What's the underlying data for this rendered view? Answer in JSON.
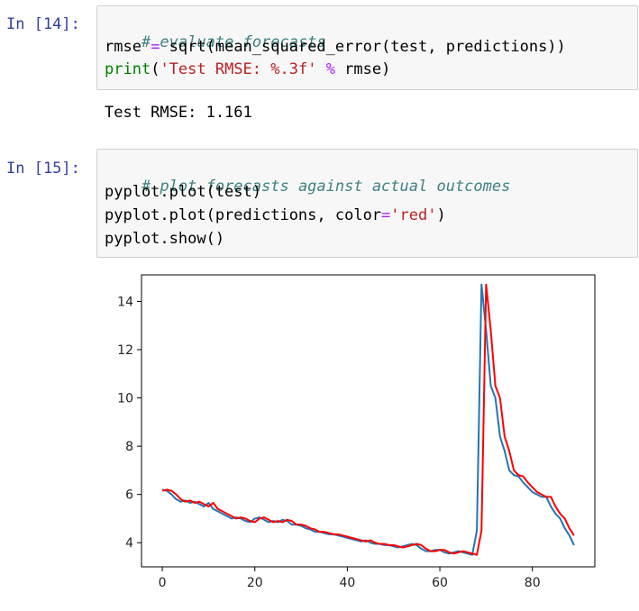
{
  "cells": [
    {
      "prompt": "In [14]:",
      "code": {
        "line1_comment": "# evaluate forecasts",
        "line2_lhs": "rmse ",
        "line2_op": "=",
        "line2_rhs": " sqrt(mean_squared_error(test, predictions))",
        "line3_builtin": "print",
        "line3_open": "(",
        "line3_string": "'Test RMSE: %.3f'",
        "line3_space": " ",
        "line3_op": "%",
        "line3_rest": " rmse)"
      },
      "output": "Test RMSE: 1.161"
    },
    {
      "prompt": "In [15]:",
      "code": {
        "line1_comment": "# plot forecasts against actual outcomes",
        "line2": "pyplot.plot(test)",
        "line3_pre": "pyplot.plot(predictions, color",
        "line3_op": "=",
        "line3_string": "'red'",
        "line3_close": ")",
        "line4": "pyplot.show()"
      }
    }
  ],
  "chart_data": {
    "type": "line",
    "title": "",
    "xlabel": "",
    "ylabel": "",
    "xlim": [
      -4.5,
      93.5
    ],
    "ylim": [
      3.0,
      15.1
    ],
    "xticks": [
      0,
      20,
      40,
      60,
      80
    ],
    "yticks": [
      4,
      6,
      8,
      10,
      12,
      14
    ],
    "grid": false,
    "series": [
      {
        "color": "#1f77b4",
        "values": [
          6.2,
          6.15,
          6.0,
          5.8,
          5.7,
          5.75,
          5.65,
          5.7,
          5.6,
          5.5,
          5.65,
          5.4,
          5.3,
          5.2,
          5.1,
          5.0,
          5.05,
          5.0,
          4.9,
          4.85,
          5.0,
          5.05,
          4.95,
          4.85,
          4.9,
          4.85,
          4.95,
          4.9,
          4.75,
          4.75,
          4.7,
          4.6,
          4.55,
          4.45,
          4.45,
          4.4,
          4.35,
          4.35,
          4.3,
          4.25,
          4.2,
          4.15,
          4.1,
          4.05,
          4.1,
          4.0,
          3.95,
          3.95,
          3.9,
          3.9,
          3.85,
          3.8,
          3.85,
          3.9,
          3.95,
          3.9,
          3.75,
          3.65,
          3.65,
          3.7,
          3.7,
          3.6,
          3.55,
          3.6,
          3.65,
          3.6,
          3.55,
          3.5,
          4.5,
          14.7,
          12.8,
          10.5,
          10.0,
          8.4,
          7.8,
          7.0,
          6.8,
          6.75,
          6.5,
          6.3,
          6.1,
          6.0,
          5.9,
          5.9,
          5.5,
          5.2,
          5.0,
          4.6,
          4.3,
          3.9
        ]
      },
      {
        "color": "red",
        "values": [
          6.15,
          6.2,
          6.15,
          6.0,
          5.8,
          5.7,
          5.75,
          5.65,
          5.7,
          5.6,
          5.5,
          5.65,
          5.4,
          5.3,
          5.2,
          5.1,
          5.0,
          5.05,
          5.0,
          4.9,
          4.85,
          5.0,
          5.05,
          4.95,
          4.85,
          4.9,
          4.85,
          4.95,
          4.9,
          4.75,
          4.75,
          4.7,
          4.6,
          4.55,
          4.45,
          4.45,
          4.4,
          4.35,
          4.35,
          4.3,
          4.25,
          4.2,
          4.15,
          4.1,
          4.05,
          4.1,
          4.0,
          3.95,
          3.95,
          3.9,
          3.9,
          3.85,
          3.8,
          3.85,
          3.9,
          3.95,
          3.9,
          3.75,
          3.65,
          3.65,
          3.7,
          3.7,
          3.6,
          3.55,
          3.6,
          3.65,
          3.6,
          3.55,
          3.5,
          4.5,
          14.7,
          12.8,
          10.5,
          10.0,
          8.4,
          7.8,
          7.0,
          6.8,
          6.75,
          6.5,
          6.3,
          6.1,
          6.0,
          5.9,
          5.9,
          5.5,
          5.2,
          5.0,
          4.6,
          4.3
        ]
      }
    ]
  }
}
